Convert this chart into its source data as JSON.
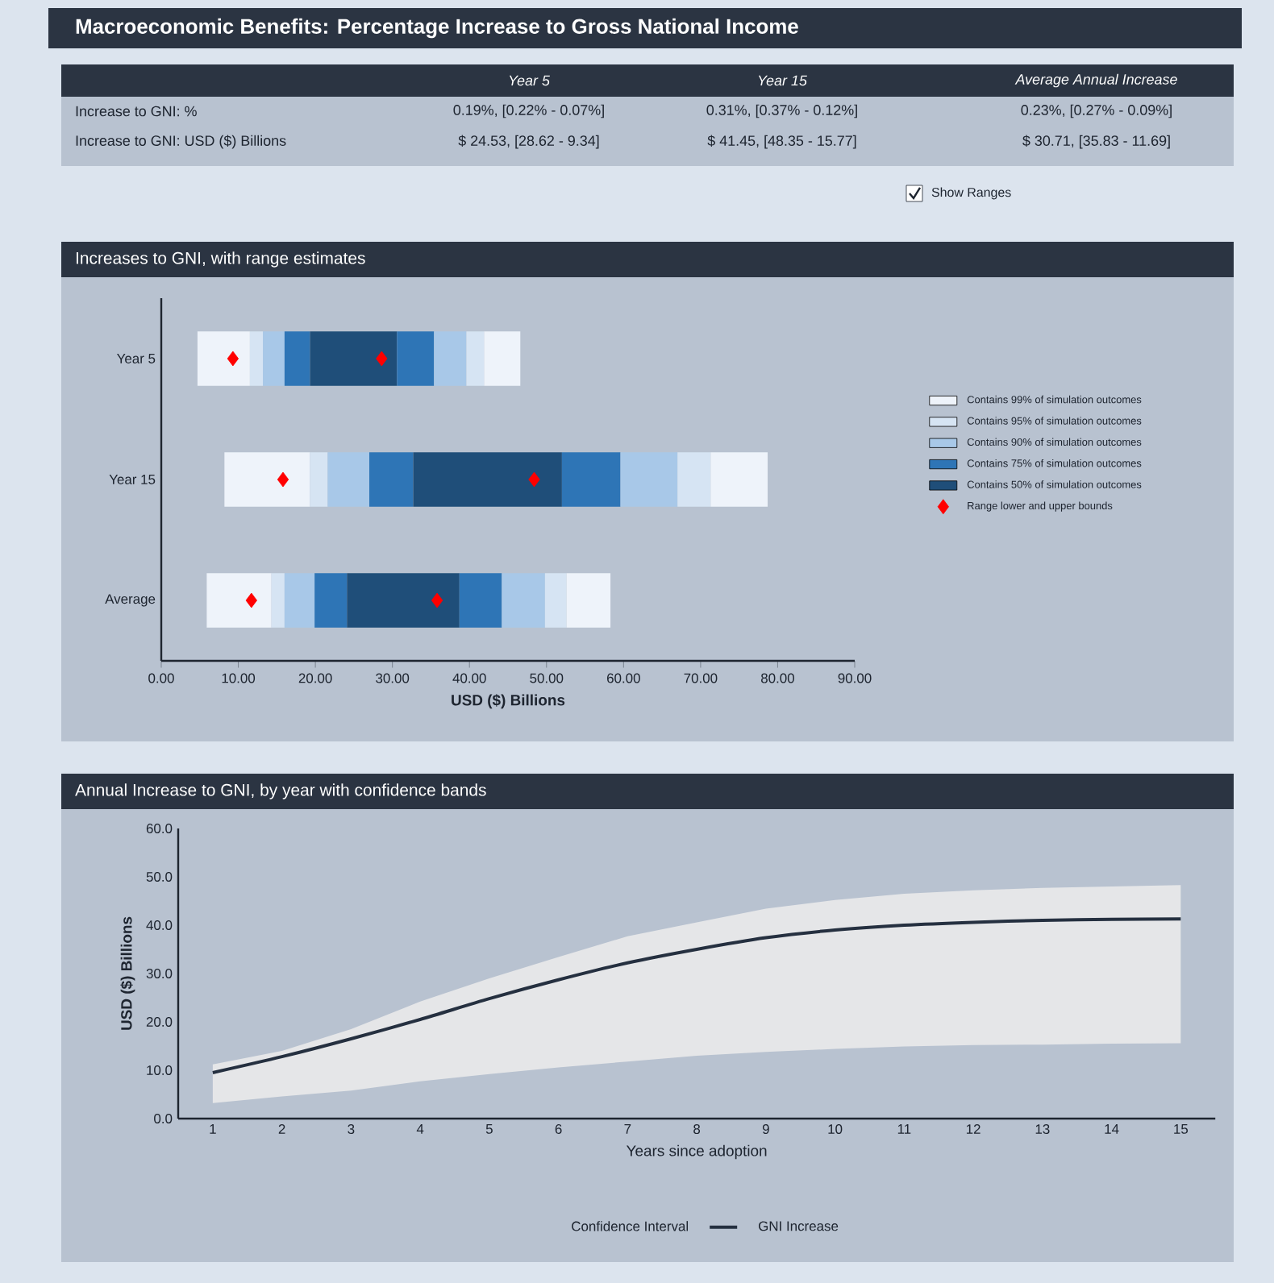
{
  "chart_data": [
    {
      "type": "other",
      "title": "Macroeconomic Benefits: Percentage Increase to Gross National Income",
      "annotations": [
        "Year 5",
        "Year 15",
        "Average Annual Increase",
        "Increase to GNI: %",
        "0.19%, [0.22% - 0.07%]",
        "0.31%, [0.37% - 0.12%]",
        "0.23%, [0.27% - 0.09%]",
        "Increase to GNI: USD ($) Billions",
        "$ 24.53, [28.62 - 9.34]",
        "$ 41.45, [48.35 - 15.77]",
        "$ 30.71, [35.83 - 11.69]",
        "Show Ranges"
      ]
    },
    {
      "type": "bar",
      "orientation": "horizontal",
      "title": "Increases to GNI, with range estimates",
      "xlabel": "USD ($) Billions",
      "categories": [
        "Year 5",
        "Year 15",
        "Average"
      ],
      "xlim": [
        0,
        90
      ],
      "xticks": [
        {
          "value": 0,
          "label": "0.00"
        },
        {
          "value": 10,
          "label": "10.00"
        },
        {
          "value": 20,
          "label": "20.00"
        },
        {
          "value": 30,
          "label": "30.00"
        },
        {
          "value": 40,
          "label": "40.00"
        },
        {
          "value": 50,
          "label": "50.00"
        },
        {
          "value": 60,
          "label": "60.00"
        },
        {
          "value": 70,
          "label": "70.00"
        },
        {
          "value": 80,
          "label": "80.00"
        },
        {
          "value": 90,
          "label": "90.00"
        }
      ],
      "legend": "right",
      "marker": "diamond",
      "series": [
        {
          "name": "Contains 99% of simulation outcomes",
          "color": "#eef3fa",
          "base": [
            4.7,
            8.2,
            5.9
          ],
          "values": [
            6.8,
            11.1,
            8.4
          ]
        },
        {
          "name": "Contains 95% of simulation outcomes",
          "color": "#d6e4f3",
          "base": [
            11.5,
            19.3,
            14.3
          ],
          "values": [
            1.7,
            2.3,
            1.7
          ]
        },
        {
          "name": "Contains 90% of simulation outcomes",
          "color": "#a8c8e8",
          "base": [
            13.2,
            21.6,
            16.0
          ],
          "values": [
            2.8,
            5.4,
            3.9
          ]
        },
        {
          "name": "Contains 75% of simulation outcomes",
          "color": "#2e75b6",
          "base": [
            16.0,
            27.0,
            19.9
          ],
          "values": [
            3.3,
            5.7,
            4.2
          ]
        },
        {
          "name": "Contains 50% of simulation outcomes",
          "color": "#1f4e79",
          "base": [
            19.3,
            32.7,
            24.1
          ],
          "values": [
            11.3,
            19.3,
            14.6
          ]
        },
        {
          "color": "#2e75b6",
          "base": [
            30.6,
            52.0,
            38.7
          ],
          "values": [
            4.8,
            7.6,
            5.5
          ]
        },
        {
          "color": "#a8c8e8",
          "base": [
            35.4,
            59.6,
            44.2
          ],
          "values": [
            4.2,
            7.4,
            5.6
          ]
        },
        {
          "color": "#d6e4f3",
          "base": [
            39.6,
            67.0,
            49.8
          ],
          "values": [
            2.3,
            4.3,
            2.8
          ]
        },
        {
          "color": "#eef3fa",
          "base": [
            41.9,
            71.3,
            52.6
          ],
          "values": [
            4.7,
            7.4,
            5.7
          ]
        },
        {
          "name": "Range lower and upper bounds",
          "type": "scatter",
          "color": "#ff0000",
          "values": [
            9.3,
            15.8,
            11.7
          ]
        },
        {
          "type": "scatter",
          "color": "#ff0000",
          "values": [
            28.6,
            48.4,
            35.8
          ]
        }
      ]
    },
    {
      "type": "line",
      "title": "Annual Increase to GNI, by year with confidence bands",
      "xlabel": "Years since adoption",
      "ylabel": "USD ($) Billions",
      "annotations": [
        "Confidence Interval"
      ],
      "x": [
        1,
        2,
        3,
        4,
        5,
        6,
        7,
        8,
        9,
        10,
        11,
        12,
        13,
        14,
        15
      ],
      "xlim": [
        0.5,
        15.5
      ],
      "xticks": [
        1,
        2,
        3,
        4,
        5,
        6,
        7,
        8,
        9,
        10,
        11,
        12,
        13,
        14,
        15
      ],
      "ylim": [
        0,
        60
      ],
      "yticks": [
        {
          "value": 0,
          "label": "0.0"
        },
        {
          "value": 10,
          "label": "10.0"
        },
        {
          "value": 20,
          "label": "20.0"
        },
        {
          "value": 30,
          "label": "30.0"
        },
        {
          "value": 40,
          "label": "40.0"
        },
        {
          "value": 50,
          "label": "50.0"
        },
        {
          "value": 60,
          "label": "60.0"
        }
      ],
      "legend": "bottom",
      "line_style": "solid",
      "series": [
        {
          "name": "GNI Increase",
          "color": "#253040",
          "values": [
            9.5,
            12.8,
            16.5,
            20.5,
            24.8,
            28.7,
            32.2,
            35.0,
            37.4,
            39.0,
            40.0,
            40.6,
            41.0,
            41.2,
            41.3
          ],
          "lower": [
            3.2,
            4.6,
            5.8,
            7.7,
            9.2,
            10.6,
            11.8,
            13.0,
            13.8,
            14.4,
            14.9,
            15.2,
            15.3,
            15.5,
            15.6
          ],
          "upper": [
            11.2,
            14.0,
            18.5,
            24.2,
            29.0,
            33.4,
            37.7,
            40.6,
            43.4,
            45.2,
            46.5,
            47.2,
            47.7,
            48.0,
            48.3
          ]
        }
      ]
    }
  ]
}
